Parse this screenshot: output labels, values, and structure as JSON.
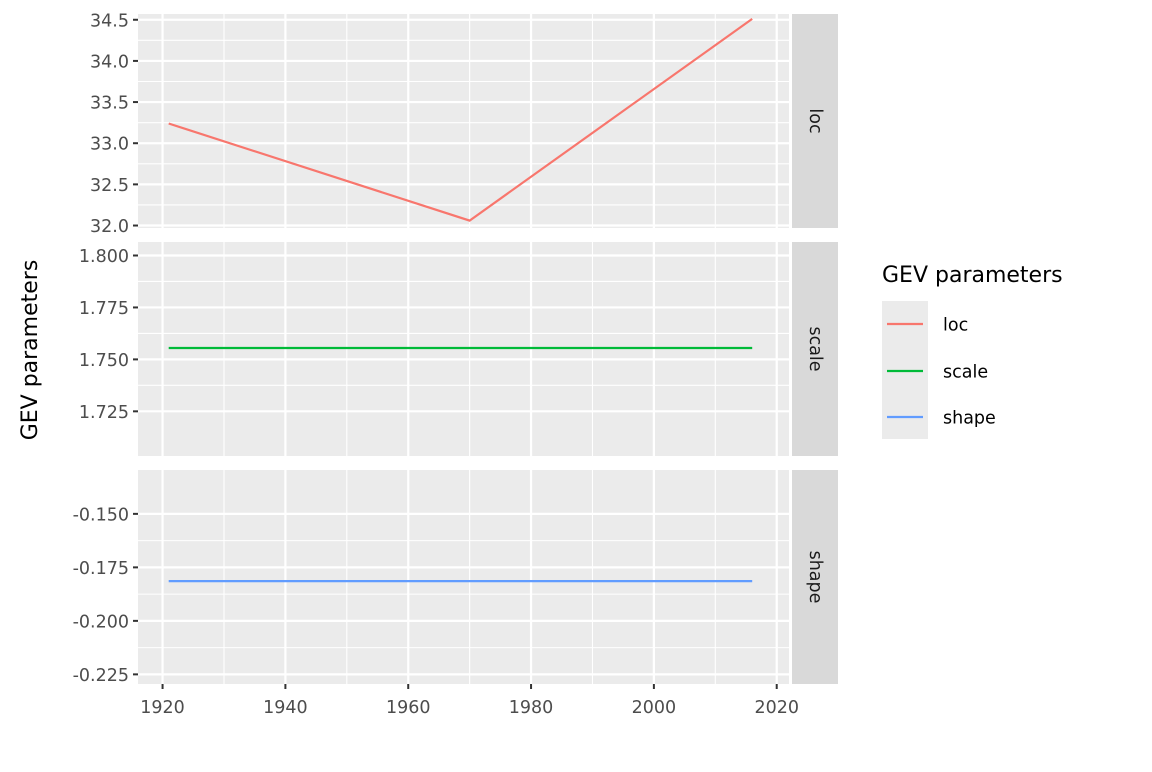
{
  "chart_data": {
    "type": "line",
    "facet_by": "GEV parameters",
    "x_axis": {
      "label": "",
      "range": [
        1916,
        2022
      ],
      "ticks": [
        1920,
        1940,
        1960,
        1980,
        2000,
        2020
      ],
      "tick_labels": [
        "1920",
        "1940",
        "1960",
        "1980",
        "2000",
        "2020"
      ]
    },
    "y_axis_label": "GEV parameters",
    "grid": true,
    "legend": {
      "title": "GEV parameters",
      "placement": "right",
      "entries": [
        "loc",
        "scale",
        "shape"
      ]
    },
    "panels": [
      {
        "strip_label": "loc",
        "ylim": [
          31.97,
          34.57
        ],
        "yticks": [
          32.0,
          32.5,
          33.0,
          33.5,
          34.0,
          34.5
        ],
        "ytick_labels": [
          "32.0",
          "32.5",
          "33.0",
          "33.5",
          "34.0",
          "34.5"
        ],
        "series": [
          {
            "name": "loc",
            "color": "#F8766D",
            "x": [
              1921,
              1970,
              2016
            ],
            "y": [
              33.24,
              32.06,
              34.51
            ]
          }
        ]
      },
      {
        "strip_label": "scale",
        "ylim": [
          1.7035,
          1.8065
        ],
        "yticks": [
          1.725,
          1.75,
          1.775,
          1.8
        ],
        "ytick_labels": [
          "1.725",
          "1.750",
          "1.775",
          "1.800"
        ],
        "series": [
          {
            "name": "scale",
            "color": "#00BA38",
            "x": [
              1921,
              2016
            ],
            "y": [
              1.7555,
              1.7555
            ]
          }
        ]
      },
      {
        "strip_label": "shape",
        "ylim": [
          -0.2295,
          -0.1295
        ],
        "yticks": [
          -0.225,
          -0.2,
          -0.175,
          -0.15
        ],
        "ytick_labels": [
          "-0.225",
          "-0.200",
          "-0.175",
          "-0.150"
        ],
        "series": [
          {
            "name": "shape",
            "color": "#619CFF",
            "x": [
              1921,
              2016
            ],
            "y": [
              -0.1814,
              -0.1814
            ]
          }
        ]
      }
    ]
  }
}
